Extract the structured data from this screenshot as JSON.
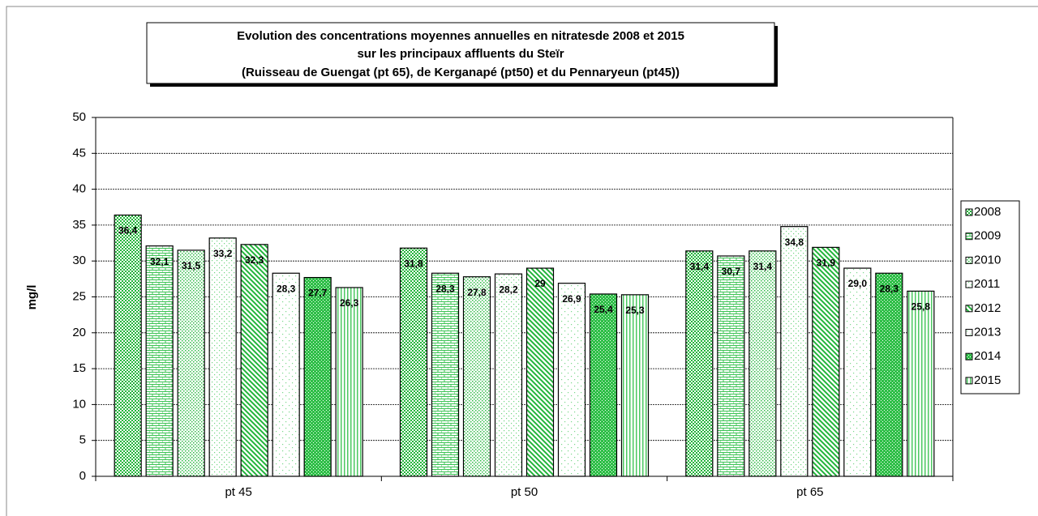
{
  "chart_data": {
    "type": "bar",
    "title": [
      "Evolution des concentrations moyennes annuelles en nitratesde 2008 et 2015",
      "sur les principaux affluents du Steïr",
      "(Ruisseau de Guengat (pt 65), de Kerganapé (pt50) et du Pennaryeun (pt45))"
    ],
    "y_label": "mg/l",
    "categories": [
      "pt 45",
      "pt 50",
      "pt 65"
    ],
    "ylim": [
      0,
      50
    ],
    "yticks": [
      0,
      5,
      10,
      15,
      20,
      25,
      30,
      35,
      40,
      45,
      50
    ],
    "grid": true,
    "legend": "right",
    "series": [
      {
        "name": "2008",
        "color": "#22b43a",
        "pattern": "checker",
        "values": [
          36.4,
          31.8,
          31.4
        ],
        "value_labels": [
          "36,4",
          "31,8",
          "31,4"
        ]
      },
      {
        "name": "2009",
        "color": "#3cc354",
        "pattern": "bricks",
        "values": [
          32.1,
          28.3,
          30.7
        ],
        "value_labels": [
          "32,1",
          "28,3",
          "30,7"
        ]
      },
      {
        "name": "2010",
        "color": "#33bb4a",
        "pattern": "dots",
        "values": [
          31.5,
          27.8,
          31.4
        ],
        "value_labels": [
          "31,5",
          "27,8",
          "31,4"
        ]
      },
      {
        "name": "2011",
        "color": "#6fd47f",
        "pattern": "lightdots",
        "values": [
          33.2,
          28.2,
          34.8
        ],
        "value_labels": [
          "33,2",
          "28,2",
          "34,8"
        ]
      },
      {
        "name": "2012",
        "color": "#22b43a",
        "pattern": "diagonal",
        "values": [
          32.3,
          29,
          31.9
        ],
        "value_labels": [
          "32,3",
          "29",
          "31,9"
        ]
      },
      {
        "name": "2013",
        "color": "#7ad88a",
        "pattern": "sparse",
        "values": [
          28.3,
          26.9,
          29.0
        ],
        "value_labels": [
          "28,3",
          "26,9",
          "29,0"
        ]
      },
      {
        "name": "2014",
        "color": "#2fbf48",
        "pattern": "grid",
        "values": [
          27.7,
          25.4,
          28.3
        ],
        "value_labels": [
          "27,7",
          "25,4",
          "28,3"
        ]
      },
      {
        "name": "2015",
        "color": "#4cc862",
        "pattern": "vertical",
        "values": [
          26.3,
          25.3,
          25.8
        ],
        "value_labels": [
          "26,3",
          "25,3",
          "25,8"
        ]
      }
    ]
  }
}
